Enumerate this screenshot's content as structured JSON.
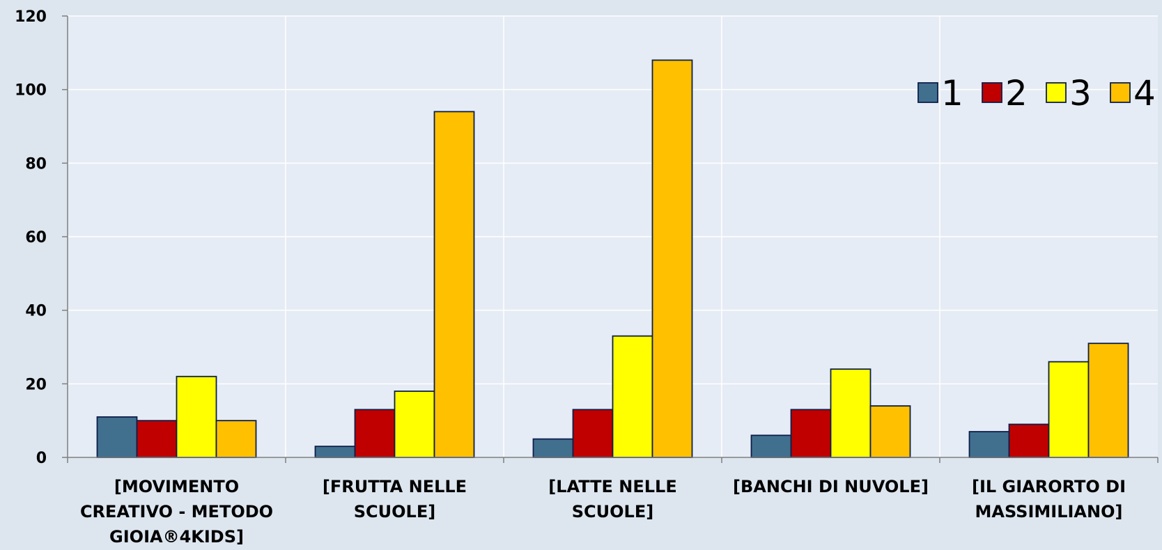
{
  "chart_data": {
    "type": "bar",
    "categories": [
      "[MOVIMENTO CREATIVO - METODO GIOIA®4KIDS]",
      "[FRUTTA NELLE SCUOLE]",
      "[LATTE NELLE SCUOLE]",
      "[BANCHI DI NUVOLE]",
      "[IL GIARORTO DI MASSIMILIANO]"
    ],
    "category_lines": [
      [
        "[MOVIMENTO",
        "CREATIVO - METODO",
        "GIOIA®4KIDS]"
      ],
      [
        "[FRUTTA NELLE",
        "SCUOLE]"
      ],
      [
        "[LATTE NELLE",
        "SCUOLE]"
      ],
      [
        "[BANCHI DI NUVOLE]"
      ],
      [
        "[IL GIARORTO DI",
        "MASSIMILIANO]"
      ]
    ],
    "series": [
      {
        "name": "1",
        "color": "#41708f",
        "values": [
          11,
          3,
          5,
          6,
          7
        ]
      },
      {
        "name": "2",
        "color": "#c00000",
        "values": [
          10,
          13,
          13,
          13,
          9
        ]
      },
      {
        "name": "3",
        "color": "#ffff00",
        "values": [
          22,
          18,
          33,
          24,
          26
        ]
      },
      {
        "name": "4",
        "color": "#ffc000",
        "values": [
          10,
          94,
          108,
          14,
          31
        ]
      }
    ],
    "title": "",
    "xlabel": "",
    "ylabel": "",
    "ylim": [
      0,
      120
    ],
    "yticks": [
      0,
      20,
      40,
      60,
      80,
      100,
      120
    ],
    "grid": true,
    "legend_position": "top-right",
    "colors": {
      "background": "#dde6ef",
      "plot_background": "#e6ecf5",
      "gridline": "#ffffff",
      "bar_outline": "#0d1e4a",
      "axis": "#7f7f7f"
    }
  }
}
